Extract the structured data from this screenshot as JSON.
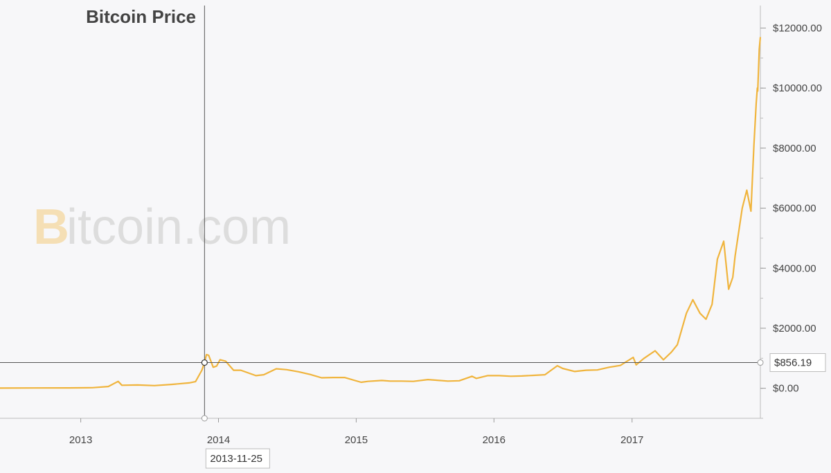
{
  "chart_data": {
    "type": "line",
    "title": "Bitcoin Price",
    "xlabel": "",
    "ylabel": "",
    "xlim": [
      "2012-06-01",
      "2017-12-07"
    ],
    "ylim": [
      -1000,
      12750
    ],
    "x_ticks": [
      "2013",
      "2014",
      "2015",
      "2016",
      "2017"
    ],
    "y_ticks": [
      "$0.00",
      "$2000.00",
      "$4000.00",
      "$6000.00",
      "$8000.00",
      "$10000.00",
      "$12000.00"
    ],
    "grid": false,
    "legend": "none",
    "series": [
      {
        "color": "#f0b43c",
        "x": [
          "2012-06-01",
          "2012-09-01",
          "2012-12-01",
          "2013-02-01",
          "2013-03-15",
          "2013-04-10",
          "2013-04-20",
          "2013-06-01",
          "2013-07-15",
          "2013-09-01",
          "2013-10-15",
          "2013-11-01",
          "2013-11-18",
          "2013-11-25",
          "2013-11-30",
          "2013-12-06",
          "2013-12-18",
          "2013-12-27",
          "2014-01-05",
          "2014-01-20",
          "2014-02-10",
          "2014-03-01",
          "2014-04-10",
          "2014-05-01",
          "2014-06-03",
          "2014-07-01",
          "2014-08-01",
          "2014-09-01",
          "2014-10-01",
          "2014-11-01",
          "2014-12-01",
          "2015-01-14",
          "2015-02-01",
          "2015-03-10",
          "2015-04-01",
          "2015-05-01",
          "2015-06-01",
          "2015-07-10",
          "2015-08-01",
          "2015-09-01",
          "2015-10-01",
          "2015-11-04",
          "2015-11-15",
          "2015-12-15",
          "2016-01-15",
          "2016-02-15",
          "2016-03-15",
          "2016-04-15",
          "2016-05-15",
          "2016-06-17",
          "2016-07-01",
          "2016-08-02",
          "2016-09-01",
          "2016-10-01",
          "2016-11-01",
          "2016-12-01",
          "2017-01-04",
          "2017-01-12",
          "2017-02-01",
          "2017-03-03",
          "2017-03-25",
          "2017-04-15",
          "2017-05-01",
          "2017-05-25",
          "2017-06-11",
          "2017-06-30",
          "2017-07-16",
          "2017-08-01",
          "2017-08-15",
          "2017-09-01",
          "2017-09-14",
          "2017-09-25",
          "2017-10-01",
          "2017-10-20",
          "2017-11-01",
          "2017-11-12",
          "2017-11-20",
          "2017-11-26",
          "2017-11-29",
          "2017-11-30",
          "2017-12-04",
          "2017-12-07"
        ],
        "y": [
          6,
          10,
          13,
          20,
          60,
          230,
          100,
          110,
          90,
          130,
          180,
          220,
          600,
          856,
          1120,
          1100,
          700,
          740,
          950,
          900,
          600,
          600,
          420,
          450,
          650,
          620,
          550,
          460,
          350,
          360,
          360,
          200,
          230,
          260,
          240,
          240,
          230,
          290,
          270,
          240,
          250,
          400,
          330,
          420,
          420,
          400,
          410,
          430,
          450,
          750,
          660,
          560,
          600,
          610,
          700,
          760,
          1030,
          780,
          990,
          1250,
          950,
          1200,
          1450,
          2500,
          2950,
          2500,
          2300,
          2800,
          4300,
          4900,
          3300,
          3700,
          4400,
          6000,
          6600,
          5900,
          8100,
          9500,
          10000,
          9900,
          11300,
          11700
        ]
      }
    ],
    "crosshair": {
      "date": "2013-11-25",
      "value": 856.19,
      "date_label": "2013-11-25",
      "value_label": "$856.19"
    }
  }
}
